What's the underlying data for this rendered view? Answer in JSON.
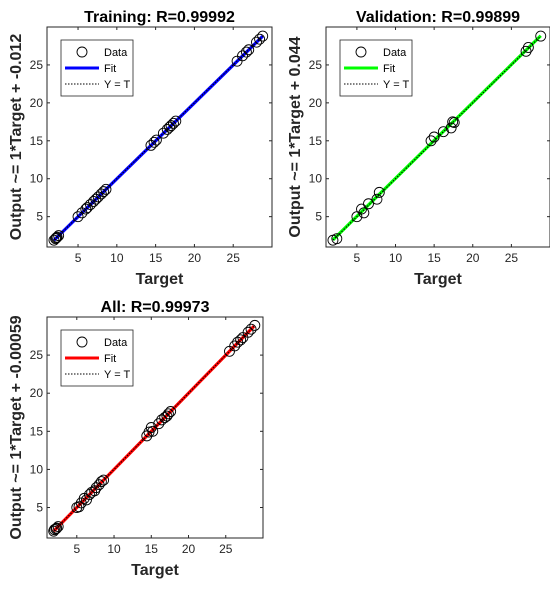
{
  "chart_data": [
    {
      "type": "scatter",
      "title": "Training: R=0.99992",
      "xlabel": "Target",
      "ylabel": "Output ~= 1*Target + -0.012",
      "xlim": [
        1,
        30
      ],
      "ylim": [
        1,
        30
      ],
      "xticks": [
        5,
        10,
        15,
        20,
        25
      ],
      "yticks": [
        5,
        10,
        15,
        20,
        25
      ],
      "grid": false,
      "legend_position": "top-left",
      "legend": {
        "data": "Data",
        "fit": "Fit",
        "ident": "Y = T"
      },
      "fit_color": "#0000ff",
      "fit_line": {
        "slope": 1.0,
        "intercept": -0.012,
        "x_range": [
          1.9,
          28.8
        ]
      },
      "points": [
        [
          1.9,
          1.9
        ],
        [
          2.1,
          2.1
        ],
        [
          2.2,
          2.2
        ],
        [
          2.3,
          2.3
        ],
        [
          2.5,
          2.5
        ],
        [
          5.0,
          5.0
        ],
        [
          5.5,
          5.5
        ],
        [
          6.0,
          6.0
        ],
        [
          6.2,
          6.2
        ],
        [
          6.6,
          6.6
        ],
        [
          7.0,
          7.0
        ],
        [
          7.3,
          7.3
        ],
        [
          7.6,
          7.6
        ],
        [
          8.0,
          8.0
        ],
        [
          8.3,
          8.3
        ],
        [
          8.6,
          8.6
        ],
        [
          14.4,
          14.4
        ],
        [
          14.8,
          14.8
        ],
        [
          15.1,
          15.1
        ],
        [
          16.0,
          16.0
        ],
        [
          16.5,
          16.5
        ],
        [
          16.8,
          16.8
        ],
        [
          17.0,
          17.0
        ],
        [
          17.3,
          17.3
        ],
        [
          17.6,
          17.6
        ],
        [
          25.5,
          25.5
        ],
        [
          26.2,
          26.2
        ],
        [
          26.7,
          26.7
        ],
        [
          27.0,
          27.0
        ],
        [
          28.0,
          28.0
        ],
        [
          28.4,
          28.4
        ],
        [
          28.8,
          28.8
        ]
      ]
    },
    {
      "type": "scatter",
      "title": "Validation: R=0.99899",
      "xlabel": "Target",
      "ylabel": "Output ~= 1*Target + 0.044",
      "xlim": [
        1,
        30
      ],
      "ylim": [
        1,
        30
      ],
      "xticks": [
        5,
        10,
        15,
        20,
        25
      ],
      "yticks": [
        5,
        10,
        15,
        20,
        25
      ],
      "grid": false,
      "legend_position": "top-left",
      "legend": {
        "data": "Data",
        "fit": "Fit",
        "ident": "Y = T"
      },
      "fit_color": "#00ff00",
      "fit_line": {
        "slope": 1.0,
        "intercept": 0.044,
        "x_range": [
          1.9,
          28.8
        ]
      },
      "points": [
        [
          1.9,
          1.9
        ],
        [
          2.4,
          2.1
        ],
        [
          5.0,
          5.0
        ],
        [
          5.6,
          6.0
        ],
        [
          5.9,
          5.5
        ],
        [
          6.5,
          6.7
        ],
        [
          7.6,
          7.3
        ],
        [
          7.9,
          8.2
        ],
        [
          14.6,
          15.0
        ],
        [
          15.0,
          15.5
        ],
        [
          16.2,
          16.2
        ],
        [
          17.2,
          16.7
        ],
        [
          17.4,
          17.5
        ],
        [
          17.6,
          17.4
        ],
        [
          26.9,
          26.8
        ],
        [
          27.2,
          27.3
        ],
        [
          28.8,
          28.8
        ]
      ]
    },
    {
      "type": "scatter",
      "title": "All: R=0.99973",
      "xlabel": "Target",
      "ylabel": "Output ~= 1*Target + -0.00059",
      "xlim": [
        1,
        30
      ],
      "ylim": [
        1,
        30
      ],
      "xticks": [
        5,
        10,
        15,
        20,
        25
      ],
      "yticks": [
        5,
        10,
        15,
        20,
        25
      ],
      "grid": false,
      "legend_position": "top-left",
      "legend": {
        "data": "Data",
        "fit": "Fit",
        "ident": "Y = T"
      },
      "fit_color": "#ff0000",
      "fit_line": {
        "slope": 1.0,
        "intercept": -0.00059,
        "x_range": [
          1.9,
          28.8
        ]
      },
      "points": [
        [
          1.9,
          1.9
        ],
        [
          2.0,
          2.1
        ],
        [
          2.2,
          2.2
        ],
        [
          2.3,
          2.3
        ],
        [
          2.5,
          2.5
        ],
        [
          5.0,
          5.0
        ],
        [
          5.3,
          5.1
        ],
        [
          5.6,
          5.6
        ],
        [
          6.0,
          6.2
        ],
        [
          6.3,
          6.0
        ],
        [
          6.7,
          6.7
        ],
        [
          7.0,
          7.0
        ],
        [
          7.4,
          7.2
        ],
        [
          7.6,
          7.6
        ],
        [
          8.0,
          8.0
        ],
        [
          8.3,
          8.4
        ],
        [
          8.6,
          8.6
        ],
        [
          14.4,
          14.4
        ],
        [
          14.7,
          14.9
        ],
        [
          15.0,
          15.5
        ],
        [
          15.2,
          15.0
        ],
        [
          16.0,
          16.0
        ],
        [
          16.4,
          16.5
        ],
        [
          16.8,
          16.8
        ],
        [
          17.1,
          17.0
        ],
        [
          17.3,
          17.3
        ],
        [
          17.6,
          17.6
        ],
        [
          25.5,
          25.5
        ],
        [
          26.2,
          26.2
        ],
        [
          26.6,
          26.7
        ],
        [
          27.0,
          27.0
        ],
        [
          27.3,
          27.3
        ],
        [
          28.0,
          28.0
        ],
        [
          28.4,
          28.4
        ],
        [
          28.9,
          28.9
        ]
      ]
    }
  ]
}
